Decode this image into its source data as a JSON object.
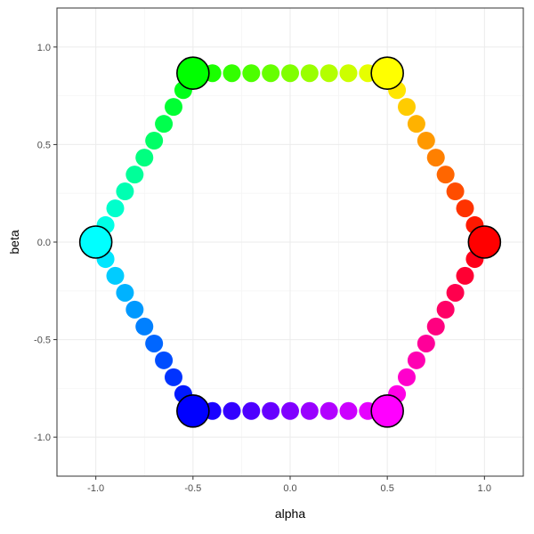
{
  "chart_data": {
    "type": "scatter",
    "title": "",
    "xlabel": "alpha",
    "ylabel": "beta",
    "xlim": [
      -1.2,
      1.2
    ],
    "ylim": [
      -1.2,
      1.2
    ],
    "x_ticks": [
      -1.0,
      -0.5,
      0.0,
      0.5,
      1.0
    ],
    "x_tick_labels": [
      "-1.0",
      "-0.5",
      "0.0",
      "0.5",
      "1.0"
    ],
    "y_ticks": [
      -1.0,
      -0.5,
      0.0,
      0.5,
      1.0
    ],
    "y_tick_labels": [
      "-1.0",
      "-0.5",
      "0.0",
      "0.5",
      "1.0"
    ],
    "grid": true,
    "legend": "none",
    "points_per_edge": 10,
    "small_points": [
      {
        "x": 1.0,
        "y": 0.0
      },
      {
        "x": 0.95,
        "y": 0.087
      },
      {
        "x": 0.9,
        "y": 0.173
      },
      {
        "x": 0.85,
        "y": 0.26
      },
      {
        "x": 0.8,
        "y": 0.346
      },
      {
        "x": 0.75,
        "y": 0.433
      },
      {
        "x": 0.7,
        "y": 0.52
      },
      {
        "x": 0.65,
        "y": 0.606
      },
      {
        "x": 0.6,
        "y": 0.693
      },
      {
        "x": 0.55,
        "y": 0.779
      },
      {
        "x": 0.5,
        "y": 0.866
      },
      {
        "x": 0.4,
        "y": 0.866
      },
      {
        "x": 0.3,
        "y": 0.866
      },
      {
        "x": 0.2,
        "y": 0.866
      },
      {
        "x": 0.1,
        "y": 0.866
      },
      {
        "x": 0.0,
        "y": 0.866
      },
      {
        "x": -0.1,
        "y": 0.866
      },
      {
        "x": -0.2,
        "y": 0.866
      },
      {
        "x": -0.3,
        "y": 0.866
      },
      {
        "x": -0.4,
        "y": 0.866
      },
      {
        "x": -0.5,
        "y": 0.866
      },
      {
        "x": -0.55,
        "y": 0.779
      },
      {
        "x": -0.6,
        "y": 0.693
      },
      {
        "x": -0.65,
        "y": 0.606
      },
      {
        "x": -0.7,
        "y": 0.52
      },
      {
        "x": -0.75,
        "y": 0.433
      },
      {
        "x": -0.8,
        "y": 0.346
      },
      {
        "x": -0.85,
        "y": 0.26
      },
      {
        "x": -0.9,
        "y": 0.173
      },
      {
        "x": -0.95,
        "y": 0.087
      },
      {
        "x": -1.0,
        "y": 0.0
      },
      {
        "x": -0.95,
        "y": -0.087
      },
      {
        "x": -0.9,
        "y": -0.173
      },
      {
        "x": -0.85,
        "y": -0.26
      },
      {
        "x": -0.8,
        "y": -0.346
      },
      {
        "x": -0.75,
        "y": -0.433
      },
      {
        "x": -0.7,
        "y": -0.52
      },
      {
        "x": -0.65,
        "y": -0.606
      },
      {
        "x": -0.6,
        "y": -0.693
      },
      {
        "x": -0.55,
        "y": -0.779
      },
      {
        "x": -0.5,
        "y": -0.866
      },
      {
        "x": -0.4,
        "y": -0.866
      },
      {
        "x": -0.3,
        "y": -0.866
      },
      {
        "x": -0.2,
        "y": -0.866
      },
      {
        "x": -0.1,
        "y": -0.866
      },
      {
        "x": 0.0,
        "y": -0.866
      },
      {
        "x": 0.1,
        "y": -0.866
      },
      {
        "x": 0.2,
        "y": -0.866
      },
      {
        "x": 0.3,
        "y": -0.866
      },
      {
        "x": 0.4,
        "y": -0.866
      },
      {
        "x": 0.5,
        "y": -0.866
      },
      {
        "x": 0.55,
        "y": -0.779
      },
      {
        "x": 0.6,
        "y": -0.693
      },
      {
        "x": 0.65,
        "y": -0.606
      },
      {
        "x": 0.7,
        "y": -0.52
      },
      {
        "x": 0.75,
        "y": -0.433
      },
      {
        "x": 0.8,
        "y": -0.346
      },
      {
        "x": 0.85,
        "y": -0.26
      },
      {
        "x": 0.9,
        "y": -0.173
      },
      {
        "x": 0.95,
        "y": -0.087
      }
    ],
    "vertex_points": [
      {
        "x": 1.0,
        "y": 0.0,
        "color": "#FF0000"
      },
      {
        "x": 0.5,
        "y": 0.866,
        "color": "#FFFF00"
      },
      {
        "x": -0.5,
        "y": 0.866,
        "color": "#00FF00"
      },
      {
        "x": -1.0,
        "y": 0.0,
        "color": "#00FFFF"
      },
      {
        "x": -0.5,
        "y": -0.866,
        "color": "#0000FF"
      },
      {
        "x": 0.5,
        "y": -0.866,
        "color": "#FF00FF"
      }
    ],
    "colors": {
      "panel_border": "#333333",
      "grid_major": "#ebebeb",
      "grid_minor": "#f5f5f5",
      "vertex_outline": "#000000"
    }
  }
}
